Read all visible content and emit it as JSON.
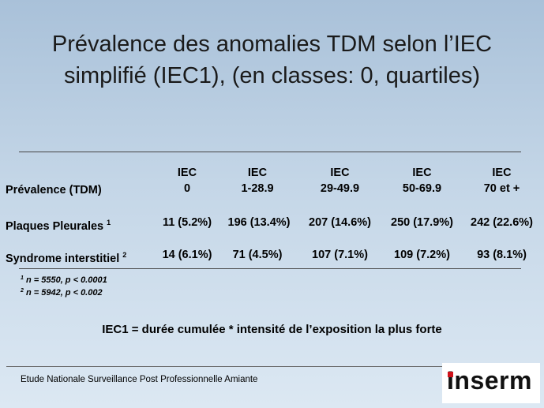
{
  "title": {
    "line1": "Prévalence des anomalies TDM selon l’IEC",
    "line2": "simplifié (IEC1), (en classes: 0, quartiles)"
  },
  "table": {
    "row_header_label": "Prévalence (TDM)",
    "columns": [
      {
        "top": "IEC",
        "bottom": "0"
      },
      {
        "top": "IEC",
        "bottom": "1-28.9"
      },
      {
        "top": "IEC",
        "bottom": "29-49.9"
      },
      {
        "top": "IEC",
        "bottom": "50-69.9"
      },
      {
        "top": "IEC",
        "bottom": "70 et +"
      }
    ],
    "rows": [
      {
        "label": "Plaques Pleurales",
        "sup": "1",
        "values": [
          "11 (5.2%)",
          "196 (13.4%)",
          "207 (14.6%)",
          "250 (17.9%)",
          "242 (22.6%)"
        ]
      },
      {
        "label": "Syndrome interstitiel",
        "sup": "2",
        "values": [
          "14 (6.1%)",
          "71 (4.5%)",
          "107 (7.1%)",
          "109 (7.2%)",
          "93 (8.1%)"
        ]
      }
    ]
  },
  "notes": [
    {
      "sup": "1",
      "text": "n = 5550, p < 0.0001"
    },
    {
      "sup": "2",
      "text": "n = 5942, p < 0.002"
    }
  ],
  "formula": "IEC1 = durée cumulée * intensité de l’exposition la plus forte",
  "footer": "Etude Nationale Surveillance Post Professionnelle Amiante",
  "logo": {
    "text": "Inserm",
    "accent_color": "#d0121b"
  }
}
